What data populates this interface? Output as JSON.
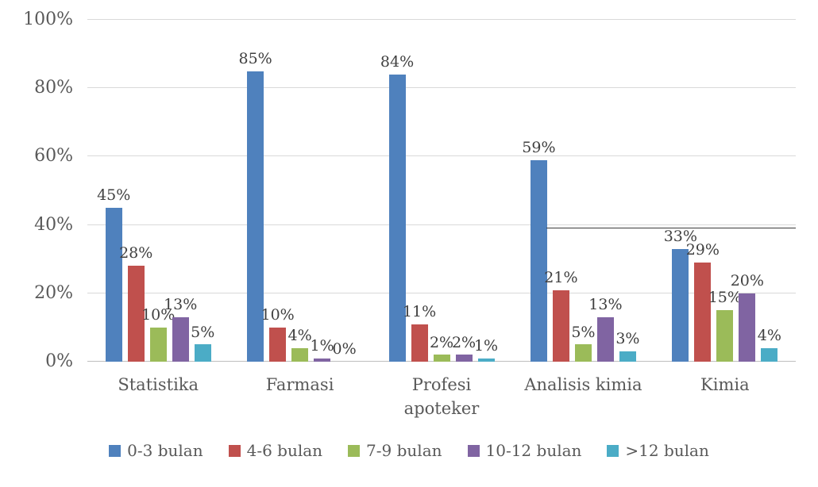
{
  "chart_data": {
    "type": "bar",
    "title": "",
    "xlabel": "",
    "ylabel": "",
    "categories": [
      "Statistika",
      "Farmasi",
      "Profesi apoteker",
      "Analisis kimia",
      "Kimia"
    ],
    "category_display": [
      "Statistika",
      "Farmasi",
      "Profesi\napoteker",
      "Analisis kimia",
      "Kimia"
    ],
    "series": [
      {
        "name": "0-3 bulan",
        "color": "#4F81BD",
        "values": [
          45,
          85,
          84,
          59,
          33
        ]
      },
      {
        "name": "4-6 bulan",
        "color": "#C0504D",
        "values": [
          28,
          10,
          11,
          21,
          29
        ]
      },
      {
        "name": "7-9 bulan",
        "color": "#9BBB59",
        "values": [
          10,
          4,
          2,
          5,
          15
        ]
      },
      {
        "name": "10-12 bulan",
        "color": "#8064A2",
        "values": [
          13,
          1,
          2,
          13,
          20
        ]
      },
      {
        "name": ">12 bulan",
        "color": "#4BACC6",
        "values": [
          5,
          0,
          1,
          3,
          4
        ]
      }
    ],
    "data_labels": true,
    "data_label_suffix": "%",
    "y_ticks": [
      "0%",
      "20%",
      "40%",
      "60%",
      "80%",
      "100%"
    ],
    "ylim": [
      0,
      100
    ],
    "grid": true,
    "legend_position": "bottom",
    "annotation_line": {
      "y_value": 39,
      "x_start_pct": 64.8,
      "x_end_pct": 100,
      "color": "#3B3B3B"
    }
  }
}
